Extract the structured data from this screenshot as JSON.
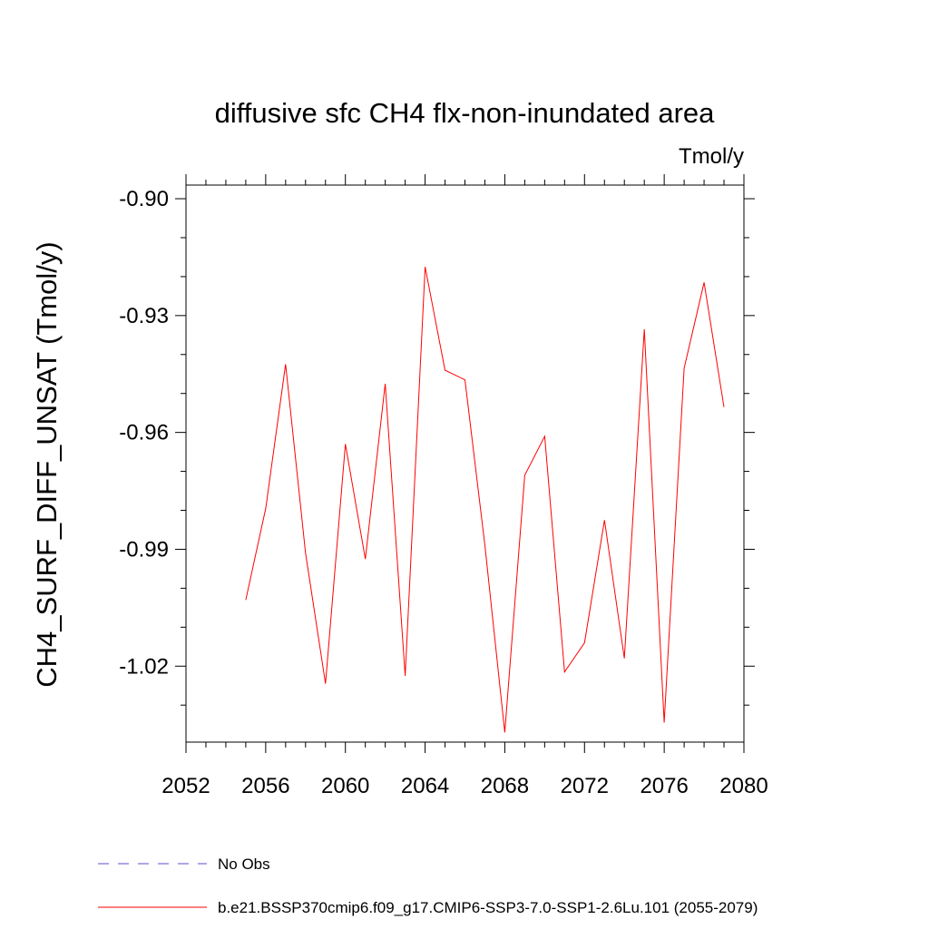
{
  "chart_data": {
    "type": "line",
    "title": "diffusive sfc CH4 flx-non-inundated area",
    "units_label": "Tmol/y",
    "xlabel": "",
    "ylabel": "CH4_SURF_DIFF_UNSAT  (Tmol/y)",
    "xlim": [
      2052,
      2080
    ],
    "ylim": [
      -1.0395,
      -0.8965
    ],
    "x_ticks": [
      2052,
      2056,
      2060,
      2064,
      2068,
      2072,
      2076,
      2080
    ],
    "x_tick_labels": [
      "2052",
      "2056",
      "2060",
      "2064",
      "2068",
      "2072",
      "2076",
      "2080"
    ],
    "y_ticks": [
      -0.9,
      -0.93,
      -0.96,
      -0.99,
      -1.02
    ],
    "y_tick_labels": [
      "-0.90",
      "-0.93",
      "-0.96",
      "-0.99",
      "-1.02"
    ],
    "y_minor_step": 0.01,
    "x_minor_step": 1,
    "grid": false,
    "legend_position": "bottom-left",
    "series": [
      {
        "name": "No Obs",
        "color": "#5a4fcf",
        "dash": "dashed",
        "x": [],
        "y": []
      },
      {
        "name": "b.e21.BSSP370cmip6.f09_g17.CMIP6-SSP3-7.0-SSP1-2.6Lu.101 (2055-2079)",
        "color": "#ff0000",
        "dash": "solid",
        "x": [
          2055,
          2056,
          2057,
          2058,
          2059,
          2060,
          2061,
          2062,
          2063,
          2064,
          2065,
          2066,
          2067,
          2068,
          2069,
          2070,
          2071,
          2072,
          2073,
          2074,
          2075,
          2076,
          2077,
          2078,
          2079
        ],
        "y": [
          -1.003,
          -0.9795,
          -0.9425,
          -0.991,
          -1.0245,
          -0.963,
          -0.9925,
          -0.9475,
          -1.0225,
          -0.9175,
          -0.944,
          -0.9465,
          -0.989,
          -1.037,
          -0.971,
          -0.961,
          -1.0215,
          -1.014,
          -0.9825,
          -1.018,
          -0.9335,
          -1.0345,
          -0.9435,
          -0.9215,
          -0.9535
        ]
      }
    ]
  }
}
